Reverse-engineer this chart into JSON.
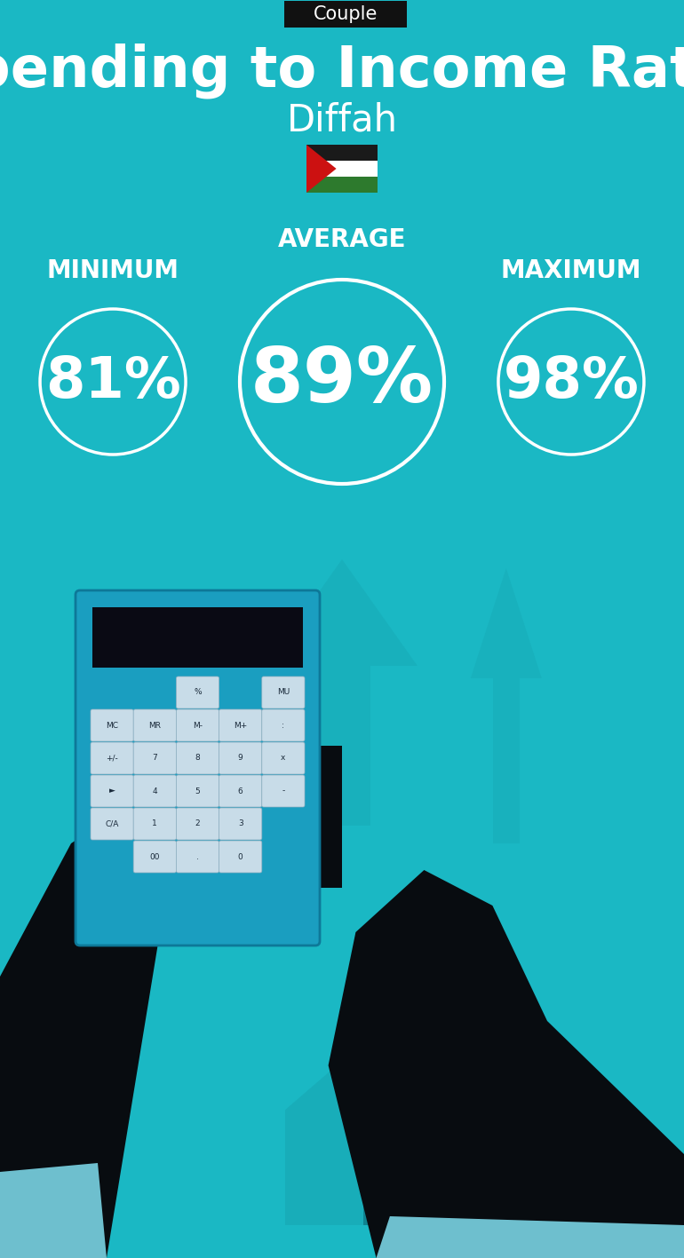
{
  "bg_color": "#1ab8c4",
  "tag_text": "Couple",
  "tag_bg": "#111111",
  "tag_text_color": "#ffffff",
  "title": "Spending to Income Ratio",
  "subtitle": "Diffah",
  "title_color": "#ffffff",
  "subtitle_color": "#ffffff",
  "title_fontsize": 46,
  "subtitle_fontsize": 30,
  "label_avg": "AVERAGE",
  "label_min": "MINIMUM",
  "label_max": "MAXIMUM",
  "label_color": "#ffffff",
  "label_fontsize": 20,
  "value_avg": "89%",
  "value_min": "81%",
  "value_max": "98%",
  "value_color": "#ffffff",
  "value_fontsize_avg": 62,
  "value_fontsize_side": 46,
  "circle_color": "#ffffff",
  "circle_lw_avg": 3,
  "circle_lw_side": 2.5,
  "figsize": [
    7.7,
    14.17
  ],
  "dpi": 100,
  "flag_colors": {
    "black": "#1a1a1a",
    "white": "#ffffff",
    "green": "#2d7a2d",
    "red": "#cc1111"
  },
  "arrow_color": "#17a8b4",
  "house_color": "#17a8b4",
  "calc_body": "#1a9ec0",
  "calc_screen": "#0a0a14",
  "calc_btn": "#c8dce8",
  "calc_btn_edge": "#90afc0",
  "hand_color": "#080c10",
  "cuff_color": "#7ad4e4",
  "bag_color": "#18aec0",
  "bag_edge": "#0d8898",
  "bag_dollar": "#d4e8e0",
  "money_color": "#17a0b0"
}
